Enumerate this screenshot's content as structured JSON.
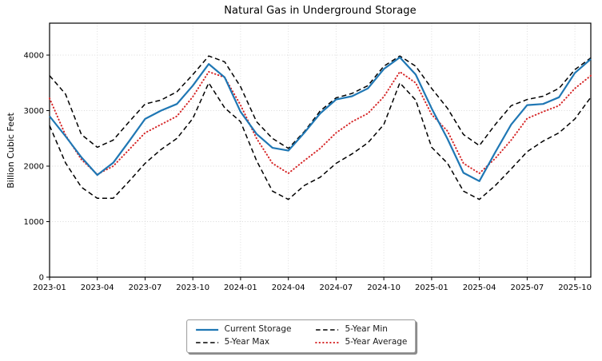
{
  "title": "Natural Gas in Underground Storage",
  "y_axis": {
    "label": "Billion Cubic Feet",
    "ticks": [
      0,
      1000,
      2000,
      3000,
      4000
    ]
  },
  "x_axis": {
    "tick_labels": [
      "2023-01",
      "2023-04",
      "2023-07",
      "2023-10",
      "2024-01",
      "2024-04",
      "2024-07",
      "2024-10",
      "2025-01",
      "2025-04",
      "2025-07",
      "2025-10"
    ]
  },
  "colors": {
    "current_storage": "#1f77b4",
    "five_year_band": "#000000",
    "five_year_average": "#d62728",
    "grid": "#d9d9d9",
    "axis": "#000000",
    "background": "#ffffff"
  },
  "legend": {
    "items": [
      {
        "label": "Current Storage",
        "style": "solid",
        "color": "#1f77b4"
      },
      {
        "label": "5-Year Min",
        "style": "dashed",
        "color": "#000000"
      },
      {
        "label": "5-Year Max",
        "style": "dashed",
        "color": "#000000"
      },
      {
        "label": "5-Year Average",
        "style": "dotted",
        "color": "#d62728"
      }
    ]
  },
  "chart_data": {
    "type": "line",
    "title": "Natural Gas in Underground Storage",
    "xlabel": "",
    "ylabel": "Billion Cubic Feet",
    "ylim": [
      0,
      4576
    ],
    "grid": true,
    "legend_position": "bottom-center",
    "x": [
      "2023-01",
      "2023-02",
      "2023-03",
      "2023-04",
      "2023-05",
      "2023-06",
      "2023-07",
      "2023-08",
      "2023-09",
      "2023-10",
      "2023-11",
      "2023-12",
      "2024-01",
      "2024-02",
      "2024-03",
      "2024-04",
      "2024-05",
      "2024-06",
      "2024-07",
      "2024-08",
      "2024-09",
      "2024-10",
      "2024-11",
      "2024-12",
      "2025-01",
      "2025-02",
      "2025-03",
      "2025-04",
      "2025-05",
      "2025-06",
      "2025-07",
      "2025-08",
      "2025-09",
      "2025-10",
      "2025-11"
    ],
    "x_tick_every": 3,
    "y_ticks": [
      0,
      1000,
      2000,
      3000,
      4000
    ],
    "series": [
      {
        "name": "Current Storage",
        "style": "solid",
        "color": "#1f77b4",
        "values": [
          2900,
          2540,
          2160,
          1840,
          2060,
          2450,
          2850,
          3000,
          3120,
          3450,
          3840,
          3600,
          2980,
          2580,
          2330,
          2280,
          2600,
          2950,
          3200,
          3260,
          3400,
          3750,
          3960,
          3650,
          3040,
          2490,
          1880,
          1730,
          2250,
          2750,
          3100,
          3120,
          3240,
          3680,
          3930
        ]
      },
      {
        "name": "5-Year Max",
        "style": "dashed",
        "color": "#000000",
        "values": [
          3630,
          3300,
          2570,
          2340,
          2470,
          2800,
          3120,
          3190,
          3340,
          3650,
          3985,
          3880,
          3430,
          2800,
          2500,
          2320,
          2620,
          2995,
          3230,
          3310,
          3450,
          3800,
          3985,
          3800,
          3400,
          3040,
          2570,
          2370,
          2750,
          3090,
          3200,
          3260,
          3400,
          3740,
          3950
        ]
      },
      {
        "name": "5-Year Min",
        "style": "dashed",
        "color": "#000000",
        "values": [
          2730,
          2060,
          1620,
          1420,
          1420,
          1730,
          2050,
          2300,
          2500,
          2860,
          3500,
          3050,
          2800,
          2100,
          1550,
          1400,
          1650,
          1800,
          2050,
          2220,
          2420,
          2750,
          3500,
          3190,
          2340,
          2050,
          1550,
          1400,
          1650,
          1950,
          2260,
          2450,
          2600,
          2850,
          3240
        ]
      },
      {
        "name": "5-Year Average",
        "style": "dotted",
        "color": "#d62728",
        "values": [
          3220,
          2560,
          2120,
          1850,
          2000,
          2300,
          2600,
          2750,
          2900,
          3250,
          3700,
          3600,
          3100,
          2500,
          2050,
          1870,
          2100,
          2320,
          2600,
          2800,
          2950,
          3250,
          3700,
          3500,
          2930,
          2630,
          2050,
          1870,
          2140,
          2470,
          2860,
          2980,
          3090,
          3400,
          3630
        ]
      }
    ]
  }
}
